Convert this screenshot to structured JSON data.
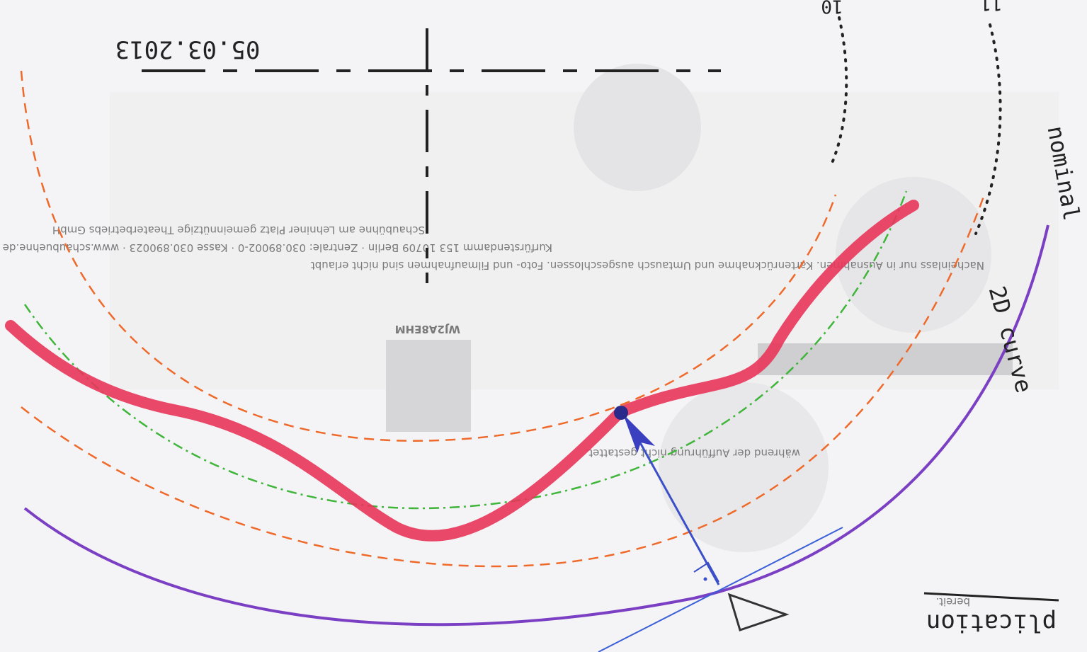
{
  "sketch": {
    "date": "05.03.2013",
    "labels": {
      "nominal": "nominal",
      "curve": "2D curve",
      "application": "plication",
      "ring_inner": "10",
      "ring_outer": "11"
    },
    "ticket": {
      "lines": [
        "Schaubühne am Lehniner Platz gemeinnützige Theaterbetriebs GmbH",
        "Kurfürstendamm 153 10709 Berlin · Zentrale: 030.89002-0 · Kasse 030.890023 · www.schaubuehne.de",
        "Nacheinlass nur in Ausnahmen. Kartenrücknahme und Umtausch ausgeschlossen. Foto- und Filmaufnahmen sind nicht erlaubt",
        "während der Aufführung nicht gestattet.",
        "bereit."
      ],
      "code": "WJ2A8EHM"
    }
  }
}
